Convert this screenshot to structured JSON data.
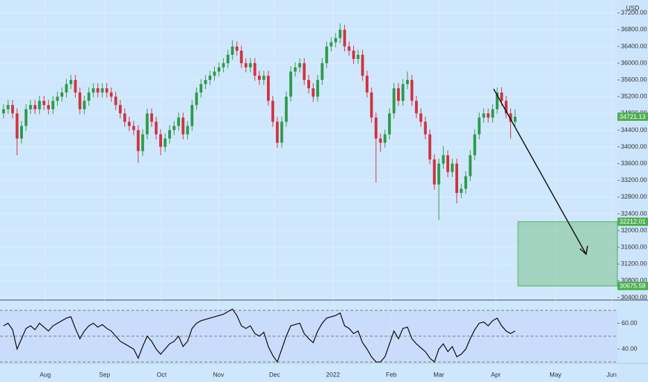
{
  "chart_data": [
    {
      "type": "candlestick",
      "currency": "USD",
      "up_color": "#2e9a4a",
      "down_color": "#d1323f",
      "background": "#cfe7fc",
      "open": [
        34800,
        34900,
        35000,
        34800,
        34200,
        34500,
        34900,
        35000,
        34900,
        35100,
        35000,
        34900,
        35100,
        35200,
        35300,
        35500,
        35600,
        35300,
        34900,
        35100,
        35300,
        35400,
        35300,
        35400,
        35300,
        35200,
        35000,
        34800,
        34600,
        34500,
        34400,
        33900,
        34300,
        34800,
        34600,
        34300,
        34000,
        34200,
        34400,
        34500,
        34700,
        34300,
        34500,
        35000,
        35300,
        35500,
        35600,
        35700,
        35800,
        35900,
        36000,
        36200,
        36400,
        36300,
        36000,
        35900,
        36000,
        35700,
        35600,
        35700,
        35100,
        34600,
        34100,
        34600,
        35200,
        35800,
        35900,
        36000,
        35600,
        35400,
        35200,
        35600,
        36000,
        36400,
        36500,
        36600,
        36800,
        36400,
        36300,
        36100,
        36200,
        35700,
        35300,
        34700,
        34200,
        34100,
        34300,
        34800,
        35400,
        35100,
        35500,
        35600,
        35100,
        34800,
        34600,
        34300,
        33700,
        33100,
        33600,
        33800,
        33400,
        33600,
        32900,
        33000,
        33300,
        33800,
        34300,
        34700,
        34800,
        34700,
        34900,
        35300,
        35100,
        34800,
        34600
      ],
      "high": [
        35020,
        35120,
        35120,
        34920,
        34620,
        35020,
        35120,
        35120,
        35220,
        35220,
        35120,
        35220,
        35320,
        35420,
        35620,
        35720,
        35720,
        35420,
        35220,
        35420,
        35520,
        35520,
        35520,
        35520,
        35420,
        35320,
        35120,
        34920,
        34720,
        34620,
        34520,
        34420,
        34920,
        34920,
        34720,
        34420,
        34320,
        34520,
        34620,
        34820,
        34820,
        34620,
        35120,
        35420,
        35620,
        35720,
        35820,
        35920,
        36020,
        36120,
        36320,
        36550,
        36520,
        36420,
        36120,
        36120,
        36120,
        35820,
        35820,
        35820,
        35220,
        34720,
        34720,
        35320,
        35920,
        36020,
        36120,
        36120,
        35720,
        35520,
        35720,
        36120,
        36520,
        36620,
        36720,
        36950,
        36920,
        36520,
        36420,
        36320,
        36320,
        35820,
        35420,
        34820,
        34320,
        34420,
        34920,
        35520,
        35520,
        35620,
        35800,
        35720,
        35220,
        34920,
        34720,
        34420,
        33820,
        33720,
        34020,
        33920,
        33720,
        33720,
        33120,
        33420,
        33920,
        34420,
        34820,
        34920,
        34920,
        35020,
        35420,
        35420,
        35220,
        34920,
        34900
      ],
      "low": [
        34680,
        34780,
        34680,
        33800,
        34080,
        34380,
        34780,
        34780,
        34780,
        34880,
        34780,
        34780,
        34980,
        35080,
        35180,
        35380,
        35180,
        34780,
        34780,
        34980,
        35180,
        35180,
        35180,
        35180,
        35080,
        34880,
        34680,
        34480,
        34380,
        34280,
        33620,
        33780,
        34180,
        34480,
        34180,
        33800,
        33880,
        34080,
        34280,
        34380,
        34180,
        34180,
        34380,
        34880,
        35180,
        35380,
        35480,
        35580,
        35680,
        35780,
        35880,
        36080,
        36180,
        35880,
        35780,
        35780,
        35580,
        35480,
        35480,
        34980,
        34480,
        33980,
        33980,
        34480,
        35080,
        35680,
        35780,
        35480,
        35280,
        35080,
        35080,
        35480,
        35880,
        36280,
        36380,
        36480,
        36280,
        36180,
        35980,
        35980,
        35580,
        35180,
        34580,
        33150,
        33880,
        33980,
        34180,
        34680,
        34980,
        34980,
        35380,
        34980,
        34680,
        34480,
        34180,
        33580,
        32980,
        32250,
        33480,
        33280,
        33280,
        32650,
        32780,
        32880,
        33180,
        33680,
        34180,
        34580,
        34580,
        34580,
        34780,
        34980,
        34680,
        34200,
        34480
      ],
      "close": [
        34900,
        35000,
        34800,
        34200,
        34500,
        34900,
        35000,
        34900,
        35100,
        35000,
        34900,
        35100,
        35200,
        35300,
        35500,
        35600,
        35300,
        34900,
        35100,
        35300,
        35400,
        35300,
        35400,
        35300,
        35200,
        35000,
        34800,
        34600,
        34500,
        34400,
        33900,
        34300,
        34800,
        34600,
        34300,
        34000,
        34200,
        34400,
        34500,
        34700,
        34300,
        34500,
        35000,
        35300,
        35500,
        35600,
        35700,
        35800,
        35900,
        36000,
        36200,
        36400,
        36300,
        36000,
        35900,
        36000,
        35700,
        35600,
        35700,
        35100,
        34600,
        34100,
        34600,
        35200,
        35800,
        35900,
        36000,
        35600,
        35400,
        35200,
        35600,
        36000,
        36400,
        36500,
        36600,
        36800,
        36400,
        36300,
        36100,
        36200,
        35700,
        35300,
        34700,
        34200,
        34100,
        34300,
        34800,
        35400,
        35100,
        35500,
        35600,
        35100,
        34800,
        34600,
        34300,
        33700,
        33100,
        33600,
        33800,
        33400,
        33600,
        32900,
        33000,
        33300,
        33800,
        34300,
        34700,
        34800,
        34700,
        34900,
        35300,
        35100,
        34800,
        34600,
        34721.13
      ],
      "last_price": 34721.13,
      "target_top": 32212.01,
      "target_bottom": 30675.58,
      "target_color": "#4caf50",
      "ylim": [
        30340,
        37510
      ],
      "yticks": [
        {
          "value": 30400,
          "label": "30400.00"
        },
        {
          "value": 30800,
          "label": "30800.00"
        },
        {
          "value": 31200,
          "label": "31200.00"
        },
        {
          "value": 31600,
          "label": "31600.00"
        },
        {
          "value": 32000,
          "label": "32000.00"
        },
        {
          "value": 32400,
          "label": "32400.00"
        },
        {
          "value": 32800,
          "label": "32800.00"
        },
        {
          "value": 33200,
          "label": "33200.00"
        },
        {
          "value": 33600,
          "label": "33600.00"
        },
        {
          "value": 34000,
          "label": "34000.00"
        },
        {
          "value": 34400,
          "label": "34400.00"
        },
        {
          "value": 34800,
          "label": "34800.00"
        },
        {
          "value": 35200,
          "label": "35200.00"
        },
        {
          "value": 35600,
          "label": "35600.00"
        },
        {
          "value": 36000,
          "label": "36000.00"
        },
        {
          "value": 36400,
          "label": "36400.00"
        },
        {
          "value": 36800,
          "label": "36800.00"
        },
        {
          "value": 37200,
          "label": "37200.00"
        }
      ],
      "xlim": [
        -0.8,
        136.8
      ],
      "xticks": [
        {
          "value": 9.3,
          "label": "Aug"
        },
        {
          "value": 22.5,
          "label": "Sep"
        },
        {
          "value": 35.2,
          "label": "Oct"
        },
        {
          "value": 47.9,
          "label": "Nov"
        },
        {
          "value": 60.4,
          "label": "Dec"
        },
        {
          "value": 73.4,
          "label": "2022"
        },
        {
          "value": 86.4,
          "label": "Feb"
        },
        {
          "value": 97.0,
          "label": "Mar"
        },
        {
          "value": 109.7,
          "label": "Apr"
        },
        {
          "value": 123.0,
          "label": "May"
        },
        {
          "value": 135.5,
          "label": "Jun"
        }
      ],
      "grid": true
    },
    {
      "type": "line",
      "color": "#111111",
      "band_color": "#c7d6fa",
      "values": [
        58,
        60,
        55,
        40,
        48,
        56,
        58,
        55,
        60,
        57,
        54,
        58,
        60,
        62,
        64,
        65,
        56,
        48,
        54,
        58,
        60,
        57,
        59,
        56,
        54,
        50,
        46,
        44,
        42,
        40,
        33,
        42,
        50,
        46,
        40,
        36,
        40,
        44,
        46,
        50,
        42,
        46,
        56,
        60,
        62,
        63,
        64,
        65,
        66,
        67,
        69,
        71,
        66,
        58,
        56,
        58,
        52,
        50,
        53,
        42,
        35,
        30,
        40,
        50,
        58,
        59,
        60,
        52,
        48,
        45,
        54,
        60,
        64,
        65,
        66,
        68,
        58,
        56,
        52,
        54,
        45,
        40,
        34,
        30,
        30,
        34,
        44,
        54,
        48,
        56,
        57,
        48,
        44,
        41,
        38,
        33,
        30,
        40,
        44,
        38,
        42,
        34,
        36,
        40,
        48,
        55,
        60,
        61,
        58,
        62,
        64,
        58,
        54,
        52,
        54
      ],
      "levels": [
        70,
        50,
        30
      ],
      "ylim": [
        29,
        78
      ],
      "yticks": [
        {
          "value": 40,
          "label": "40.00"
        },
        {
          "value": 60,
          "label": "60.00"
        }
      ]
    }
  ]
}
